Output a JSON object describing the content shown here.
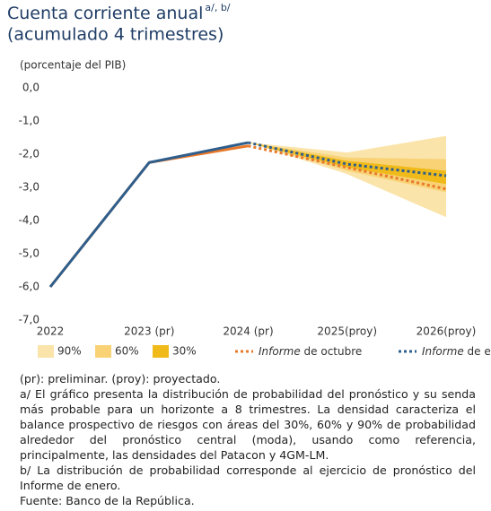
{
  "chart_data": {
    "type": "fan",
    "title": "Cuenta corriente anual",
    "title_superscript": "a/, b/",
    "title_line2": "(acumulado 4 trimestres)",
    "y_axis_label": "(porcentaje del PIB)",
    "categories": [
      "2022",
      "2023 (pr)",
      "2024 (pr)",
      "2025(proy)",
      "2026(proy)"
    ],
    "ylim": [
      -7,
      0
    ],
    "yticks": [
      {
        "value": 0,
        "label": "0,0"
      },
      {
        "value": -1,
        "label": "-1,0"
      },
      {
        "value": -2,
        "label": "-2,0"
      },
      {
        "value": -3,
        "label": "-3,0"
      },
      {
        "value": -4,
        "label": "-4,0"
      },
      {
        "value": -5,
        "label": "-5,0"
      },
      {
        "value": -6,
        "label": "-6,0"
      },
      {
        "value": -7,
        "label": "-7,0"
      }
    ],
    "bands": [
      {
        "name": "90%",
        "color": "#fbe4aa",
        "upper": [
          null,
          null,
          -1.65,
          -1.95,
          -1.45
        ],
        "lower": [
          null,
          null,
          -1.65,
          -2.6,
          -3.9
        ]
      },
      {
        "name": "60%",
        "color": "#f8d275",
        "upper": [
          null,
          null,
          -1.65,
          -2.1,
          -2.15
        ],
        "lower": [
          null,
          null,
          -1.65,
          -2.5,
          -3.15
        ]
      },
      {
        "name": "30%",
        "color": "#efba1a",
        "upper": [
          null,
          null,
          -1.65,
          -2.2,
          -2.5
        ],
        "lower": [
          null,
          null,
          -1.65,
          -2.4,
          -2.9
        ]
      }
    ],
    "series": [
      {
        "name": "Informe de octubre",
        "color": "#e8782a",
        "values": [
          -6.0,
          -2.25,
          -1.75,
          -2.4,
          -3.05
        ]
      },
      {
        "name": "Informe de enero",
        "color": "#2e5e8c",
        "values": [
          -6.0,
          -2.25,
          -1.65,
          -2.3,
          -2.65
        ]
      }
    ]
  },
  "notes": [
    "(pr): preliminar. (proy): proyectado.",
    "a/ El gráfico presenta la distribución de probabilidad del pronóstico y su senda más probable para un horizonte a 8 trimestres. La densidad caracteriza el balance prospectivo de riesgos con áreas del 30%, 60% y 90% de probabilidad alrededor del pronóstico central (moda), usando como referencia, principalmente, las densidades del Patacon y 4GM-LM.",
    "b/ La distribución de probabilidad corresponde al ejercicio de pronóstico del Informe de enero.",
    "Fuente: Banco de la República."
  ]
}
